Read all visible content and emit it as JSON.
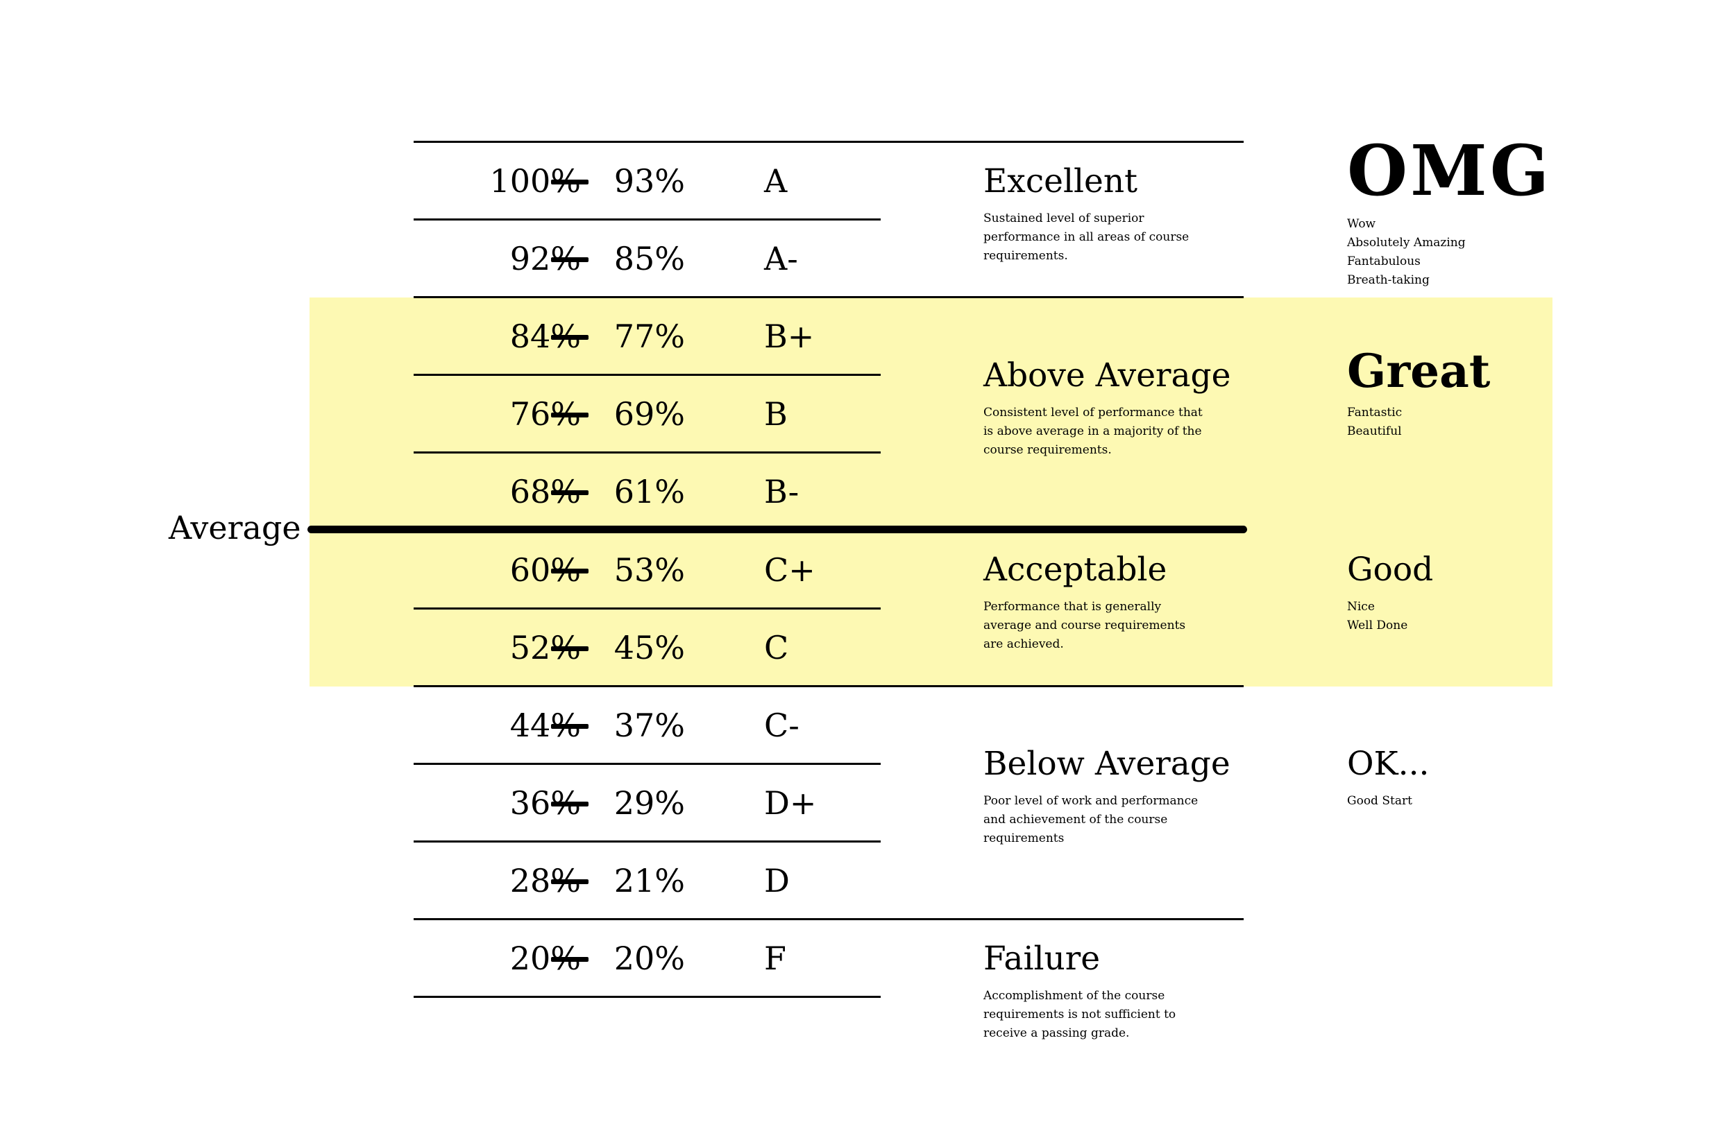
{
  "average_label": "Average",
  "rows": [
    {
      "high": "100%",
      "low": "93%",
      "grade": "A"
    },
    {
      "high": "92%",
      "low": "85%",
      "grade": "A-"
    },
    {
      "high": "84%",
      "low": "77%",
      "grade": "B+"
    },
    {
      "high": "76%",
      "low": "69%",
      "grade": "B"
    },
    {
      "high": "68%",
      "low": "61%",
      "grade": "B-"
    },
    {
      "high": "60%",
      "low": "53%",
      "grade": "C+"
    },
    {
      "high": "52%",
      "low": "45%",
      "grade": "C"
    },
    {
      "high": "44%",
      "low": "37%",
      "grade": "C-"
    },
    {
      "high": "36%",
      "low": "29%",
      "grade": "D+"
    },
    {
      "high": "28%",
      "low": "21%",
      "grade": "D"
    },
    {
      "high": "20%",
      "low": "20%",
      "grade": "F"
    }
  ],
  "categories": [
    {
      "title": "Excellent",
      "description": "Sustained level of superior performance in all areas of course requirements."
    },
    {
      "title": "Above Average",
      "description": "Consistent level of performance that is above average in a majority of the course requirements."
    },
    {
      "title": "Acceptable",
      "description": "Performance that is generally average  and course requirements are achieved."
    },
    {
      "title": "Below Average",
      "description": "Poor level of work and performance and achievement of the course requirements"
    },
    {
      "title": "Failure",
      "description": "Accomplishment of the course requirements is not sufficient to receive a passing grade."
    }
  ],
  "reactions": [
    {
      "title": "OMG",
      "items": [
        "Wow",
        "Absolutely Amazing",
        "Fantabulous",
        "Breath-taking"
      ]
    },
    {
      "title": "Great",
      "items": [
        "Fantastic",
        "Beautiful"
      ]
    },
    {
      "title": "Good",
      "items": [
        "Nice",
        "Well Done"
      ]
    },
    {
      "title": "OK...",
      "items": [
        "Good Start"
      ]
    }
  ],
  "colors": {
    "highlight": "#fdf9b3",
    "text": "#000000"
  }
}
